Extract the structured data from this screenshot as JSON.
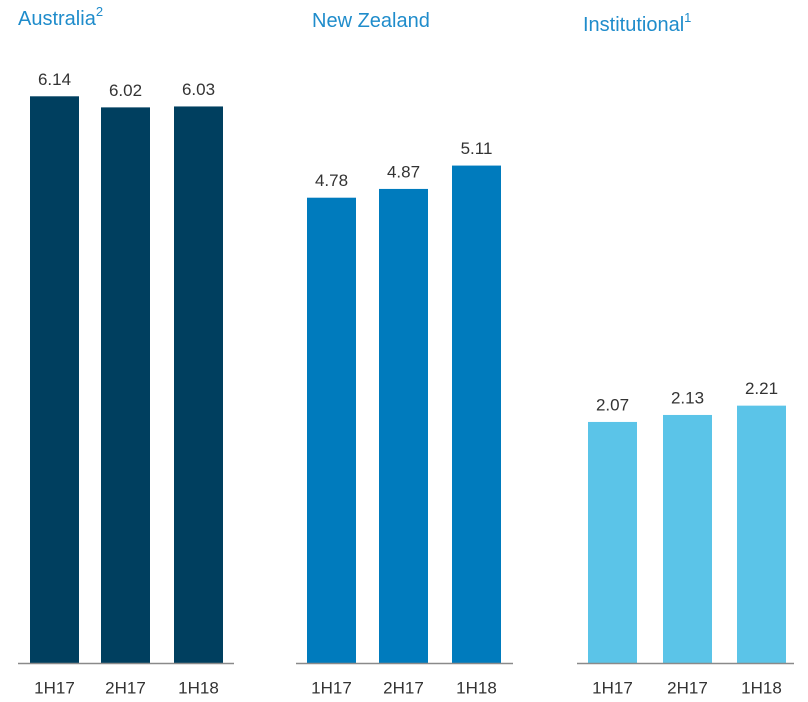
{
  "chart_data": [
    {
      "type": "bar",
      "title": "Australia",
      "title_superscript": "2",
      "categories": [
        "1H17",
        "2H17",
        "1H18"
      ],
      "values": [
        6.14,
        6.02,
        6.03
      ],
      "color": "#003f5f",
      "ylim": [
        0,
        6.75
      ]
    },
    {
      "type": "bar",
      "title": "New Zealand",
      "categories": [
        "1H17",
        "2H17",
        "1H18"
      ],
      "values": [
        4.78,
        4.87,
        5.11
      ],
      "color": "#007bbd",
      "ylim": [
        0,
        6.4
      ]
    },
    {
      "type": "bar",
      "title": "Institutional",
      "title_superscript": "1",
      "categories": [
        "1H17",
        "2H17",
        "1H18"
      ],
      "values": [
        2.07,
        2.13,
        2.21
      ],
      "color": "#5bc4e8",
      "ylim": [
        0,
        5.35
      ]
    }
  ]
}
